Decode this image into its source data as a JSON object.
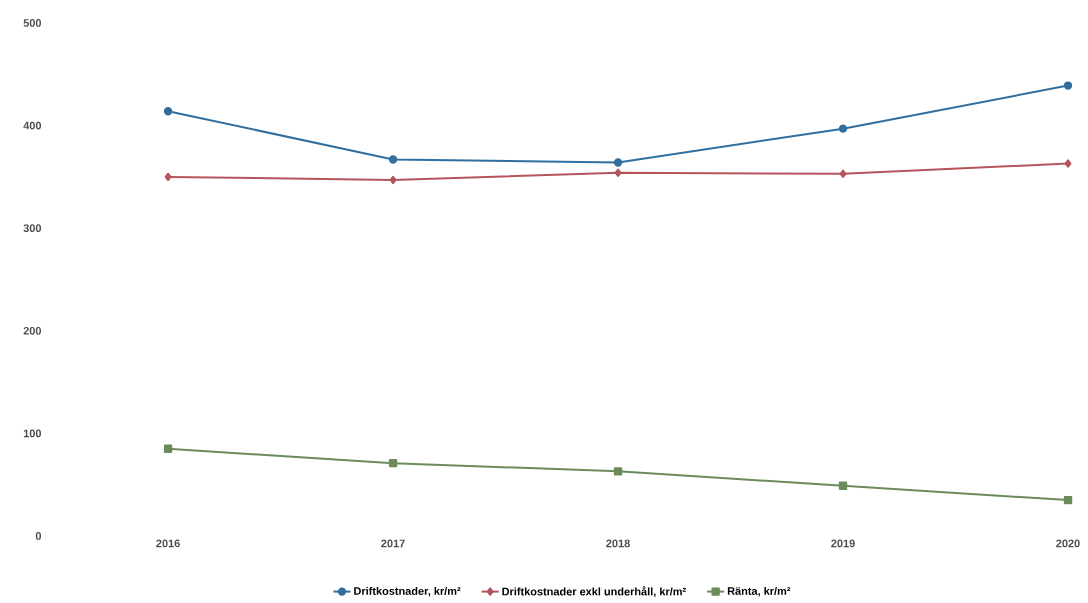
{
  "chart_data": {
    "type": "line",
    "categories": [
      "2016",
      "2017",
      "2018",
      "2019",
      "2020"
    ],
    "series": [
      {
        "name": "Driftkostnader, kr/m²",
        "color": "#2f6e9e",
        "marker": "circle",
        "values": [
          414,
          367,
          364,
          397,
          439
        ]
      },
      {
        "name": "Driftkostnader exkl underhåll, kr/m²",
        "color": "#b5545a",
        "marker": "diamond",
        "values": [
          350,
          347,
          354,
          353,
          363
        ]
      },
      {
        "name": "Ränta, kr/m²",
        "color": "#6b8c5a",
        "marker": "square",
        "values": [
          85,
          71,
          63,
          49,
          35
        ]
      }
    ],
    "ylim": [
      0,
      500
    ],
    "yticks": [
      0,
      100,
      200,
      300,
      400,
      500
    ],
    "grid": false,
    "legend": "bottom",
    "line_style": "solid"
  }
}
